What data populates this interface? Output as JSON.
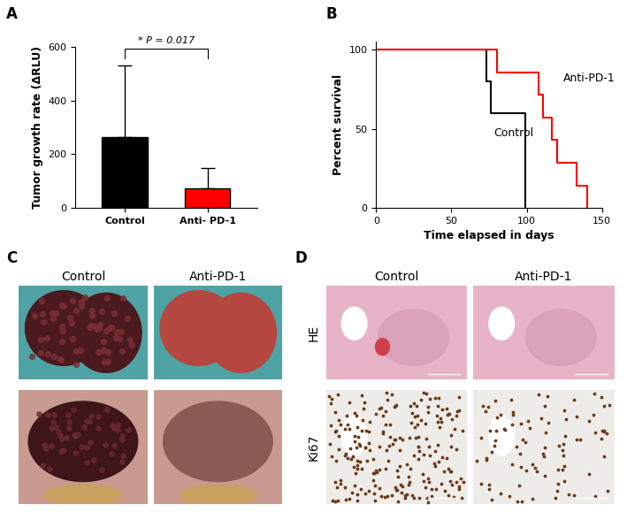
{
  "chart_data": [
    {
      "panel": "A",
      "type": "bar",
      "categories": [
        "Control",
        "Anti- PD-1"
      ],
      "values": [
        265,
        72
      ],
      "errors": [
        265,
        76
      ],
      "colors": [
        "#000000",
        "#ff0000"
      ],
      "ylabel": "Tumor growth rate (ΔRLU)",
      "annotation": "* P = 0.017",
      "ylim": [
        0,
        600
      ],
      "yticks": [
        0,
        200,
        400,
        600
      ]
    },
    {
      "panel": "B",
      "type": "line",
      "line_style": "steps",
      "xlabel": "Time elapsed in days",
      "ylabel": "Percent survival",
      "series": [
        {
          "name": "Control",
          "color": "#000000",
          "x": [
            0,
            73,
            76,
            99
          ],
          "values": [
            100,
            80,
            60,
            0
          ]
        },
        {
          "name": "Anti-PD-1",
          "color": "#ff0000",
          "x": [
            0,
            80,
            108,
            111,
            117,
            120,
            133,
            140
          ],
          "values": [
            100,
            85.7,
            71.4,
            57.1,
            42.9,
            28.6,
            14.3,
            0
          ]
        }
      ],
      "xlim": [
        0,
        150
      ],
      "xticks": [
        0,
        50,
        100,
        150
      ],
      "ylim": [
        0,
        105
      ],
      "yticks": [
        0,
        50,
        100
      ]
    }
  ],
  "images": [
    {
      "panel": "C",
      "columns": [
        "Control",
        "Anti-PD-1"
      ]
    },
    {
      "panel": "D",
      "columns": [
        "Control",
        "Anti-PD-1"
      ],
      "rows": [
        "HE",
        "Ki67"
      ]
    }
  ]
}
